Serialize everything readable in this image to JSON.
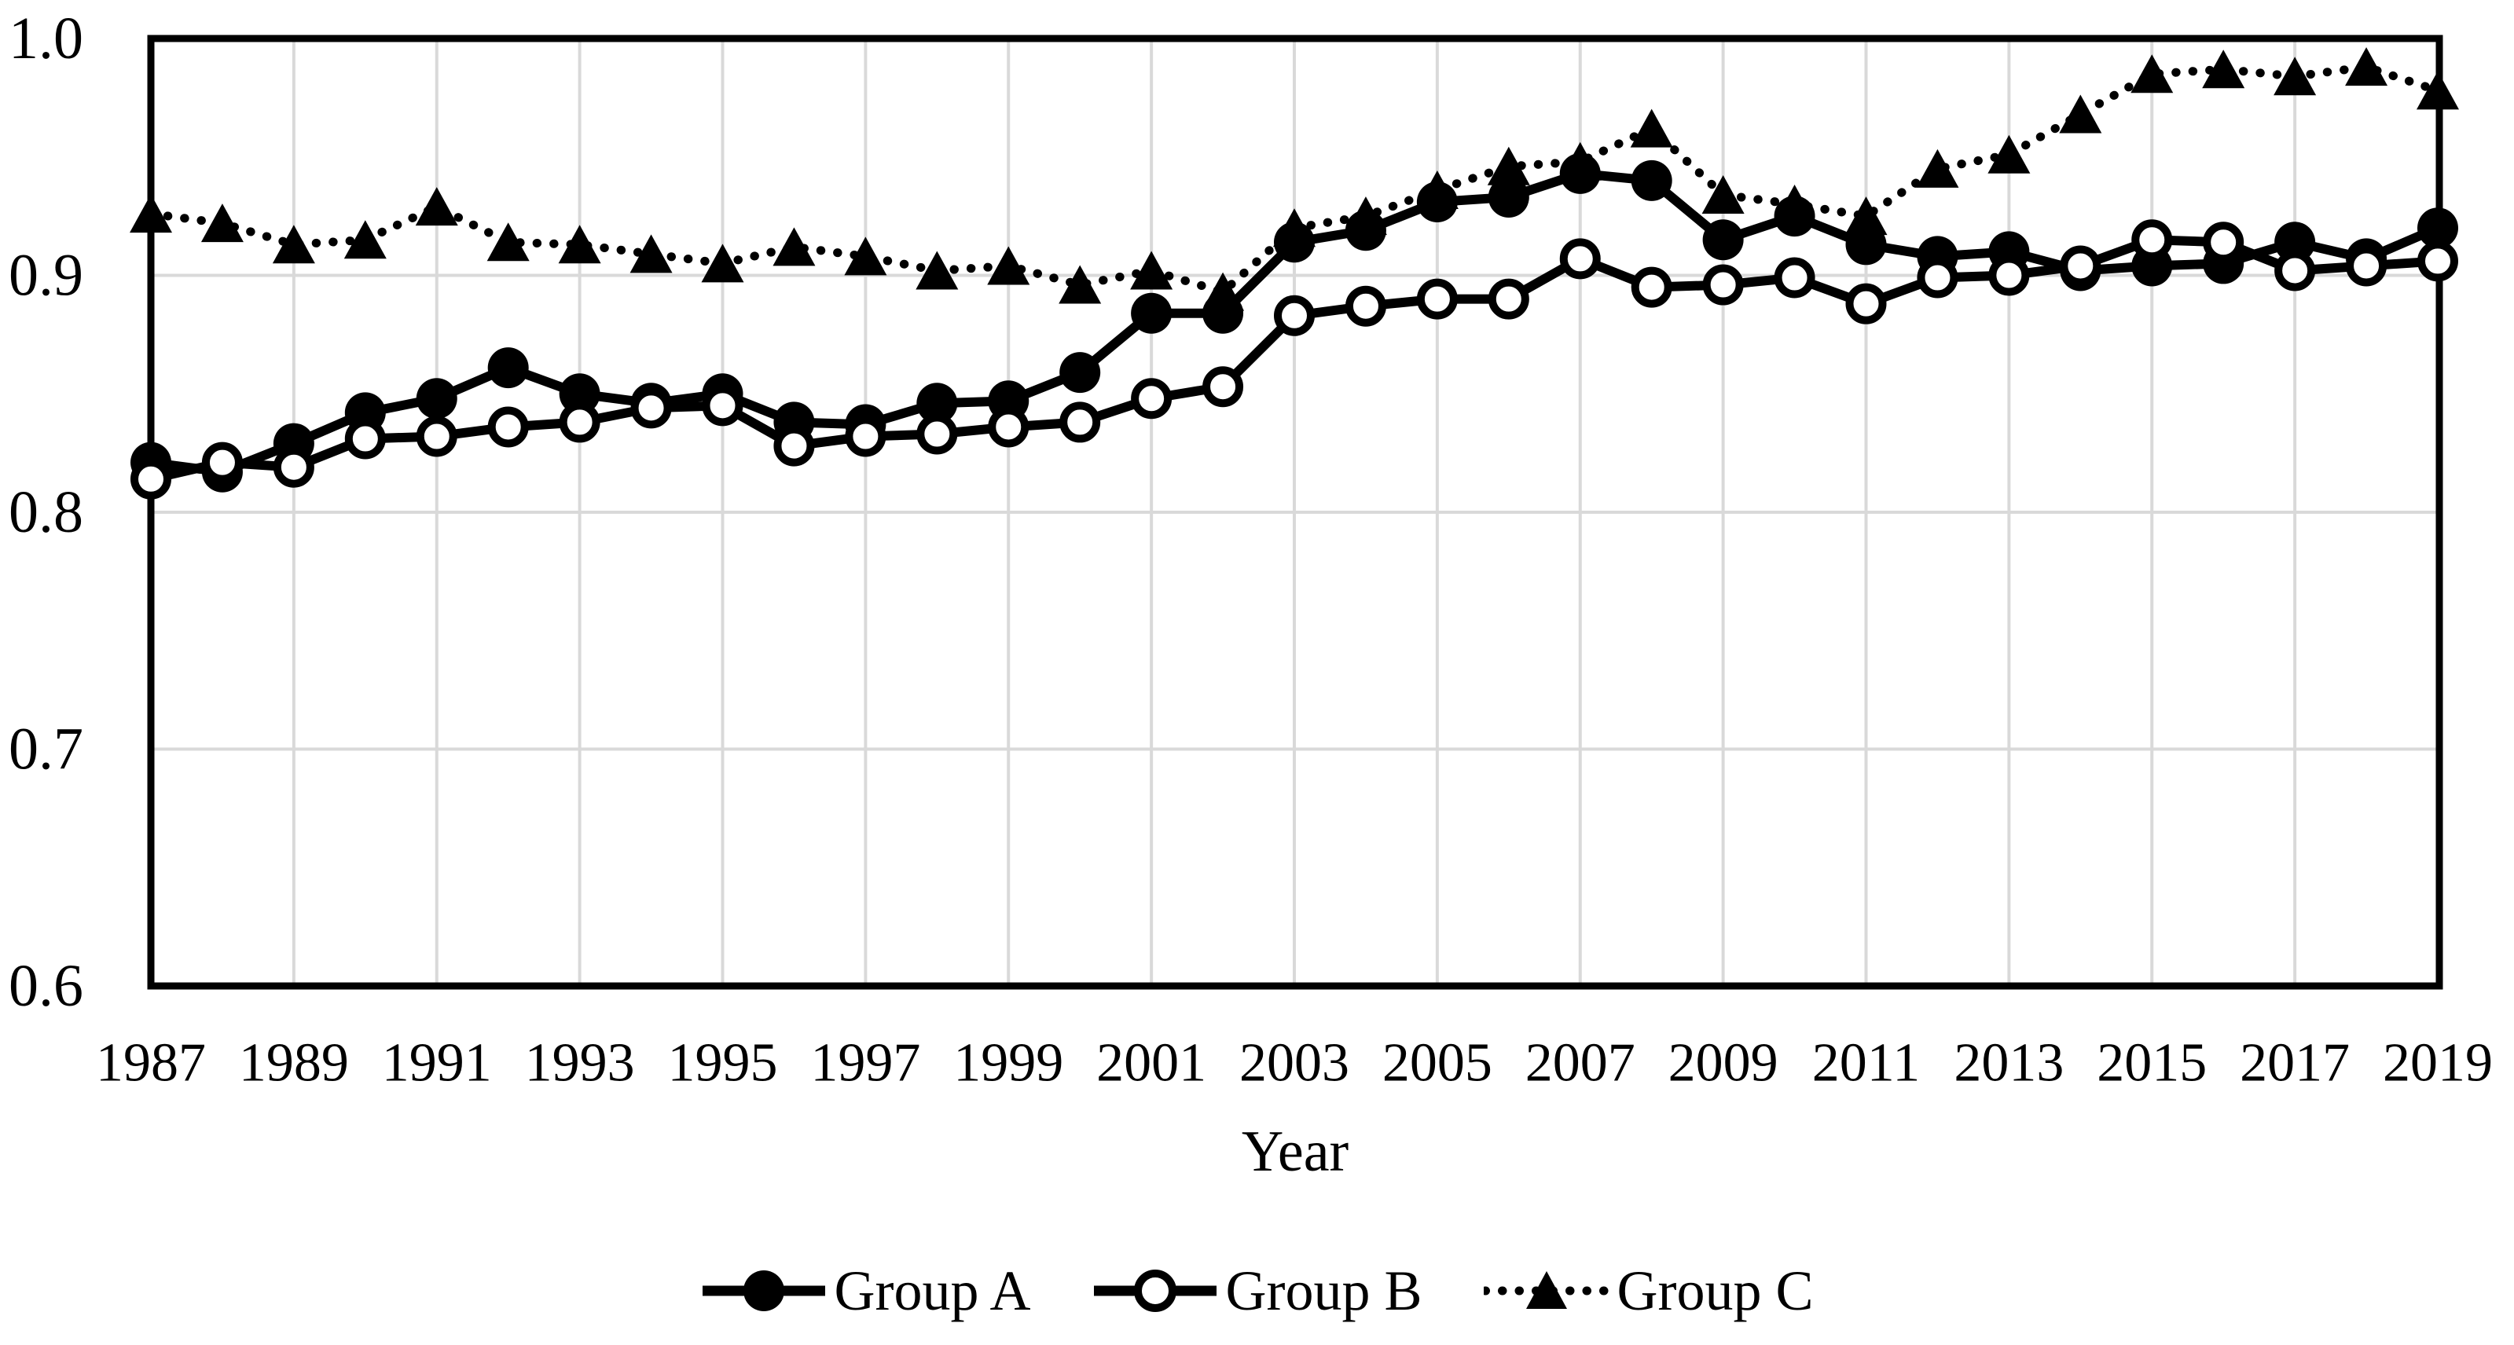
{
  "chart_data": {
    "type": "line",
    "title": "",
    "xlabel": "Year",
    "ylabel": "",
    "x": [
      1987,
      1988,
      1989,
      1990,
      1991,
      1992,
      1993,
      1994,
      1995,
      1996,
      1997,
      1998,
      1999,
      2000,
      2001,
      2002,
      2003,
      2004,
      2005,
      2006,
      2007,
      2008,
      2009,
      2010,
      2011,
      2012,
      2013,
      2014,
      2015,
      2016,
      2017,
      2018,
      2019
    ],
    "x_tick_years": [
      1987,
      1989,
      1991,
      1993,
      1995,
      1997,
      1999,
      2001,
      2003,
      2005,
      2007,
      2009,
      2011,
      2013,
      2015,
      2017,
      2019
    ],
    "x_ticklabels": [
      "1987",
      "1989",
      "1991",
      "1993",
      "1995",
      "1997",
      "1999",
      "2001",
      "2003",
      "2005",
      "2007",
      "2009",
      "2011",
      "2013",
      "2015",
      "2017",
      "2019"
    ],
    "y_ticks": [
      0.6,
      0.7,
      0.8,
      0.9,
      1.0
    ],
    "y_ticklabels": [
      "0.6",
      "0.7",
      "0.8",
      "0.9",
      "1.0"
    ],
    "ylim": [
      0.6,
      1.0
    ],
    "grid": true,
    "gridline_years": [
      1989,
      1991,
      1993,
      1995,
      1997,
      1999,
      2001,
      2003,
      2005,
      2007,
      2009,
      2011,
      2013,
      2015,
      2017
    ],
    "gridline_values": [
      0.7,
      0.8,
      0.9
    ],
    "legend_position": "bottom",
    "series": [
      {
        "name": "Group A",
        "marker": "filled-circle",
        "line": "solid",
        "values": [
          0.821,
          0.817,
          0.829,
          0.842,
          0.848,
          0.861,
          0.85,
          0.846,
          0.85,
          0.838,
          0.837,
          0.846,
          0.847,
          0.859,
          0.884,
          0.884,
          0.914,
          0.919,
          0.931,
          0.933,
          0.943,
          0.94,
          0.915,
          0.925,
          0.913,
          0.908,
          0.91,
          0.902,
          0.904,
          0.905,
          0.914,
          0.907,
          0.92
        ]
      },
      {
        "name": "Group B",
        "marker": "open-circle",
        "line": "solid",
        "values": [
          0.814,
          0.821,
          0.819,
          0.831,
          0.832,
          0.836,
          0.838,
          0.844,
          0.845,
          0.828,
          0.832,
          0.833,
          0.836,
          0.838,
          0.848,
          0.853,
          0.883,
          0.887,
          0.89,
          0.89,
          0.907,
          0.895,
          0.896,
          0.899,
          0.888,
          0.899,
          0.9,
          0.904,
          0.915,
          0.914,
          0.902,
          0.904,
          0.906
        ]
      },
      {
        "name": "Group C",
        "marker": "filled-triangle",
        "line": "dotted",
        "values": [
          0.926,
          0.922,
          0.913,
          0.915,
          0.929,
          0.914,
          0.913,
          0.909,
          0.905,
          0.912,
          0.908,
          0.902,
          0.904,
          0.896,
          0.902,
          0.893,
          0.92,
          0.925,
          0.936,
          0.946,
          0.948,
          0.962,
          0.934,
          0.93,
          0.925,
          0.945,
          0.951,
          0.968,
          0.985,
          0.987,
          0.984,
          0.988,
          0.978
        ]
      }
    ],
    "colors": {
      "foreground": "#000000",
      "gridline": "#d9d9d9",
      "background": "#ffffff"
    }
  }
}
